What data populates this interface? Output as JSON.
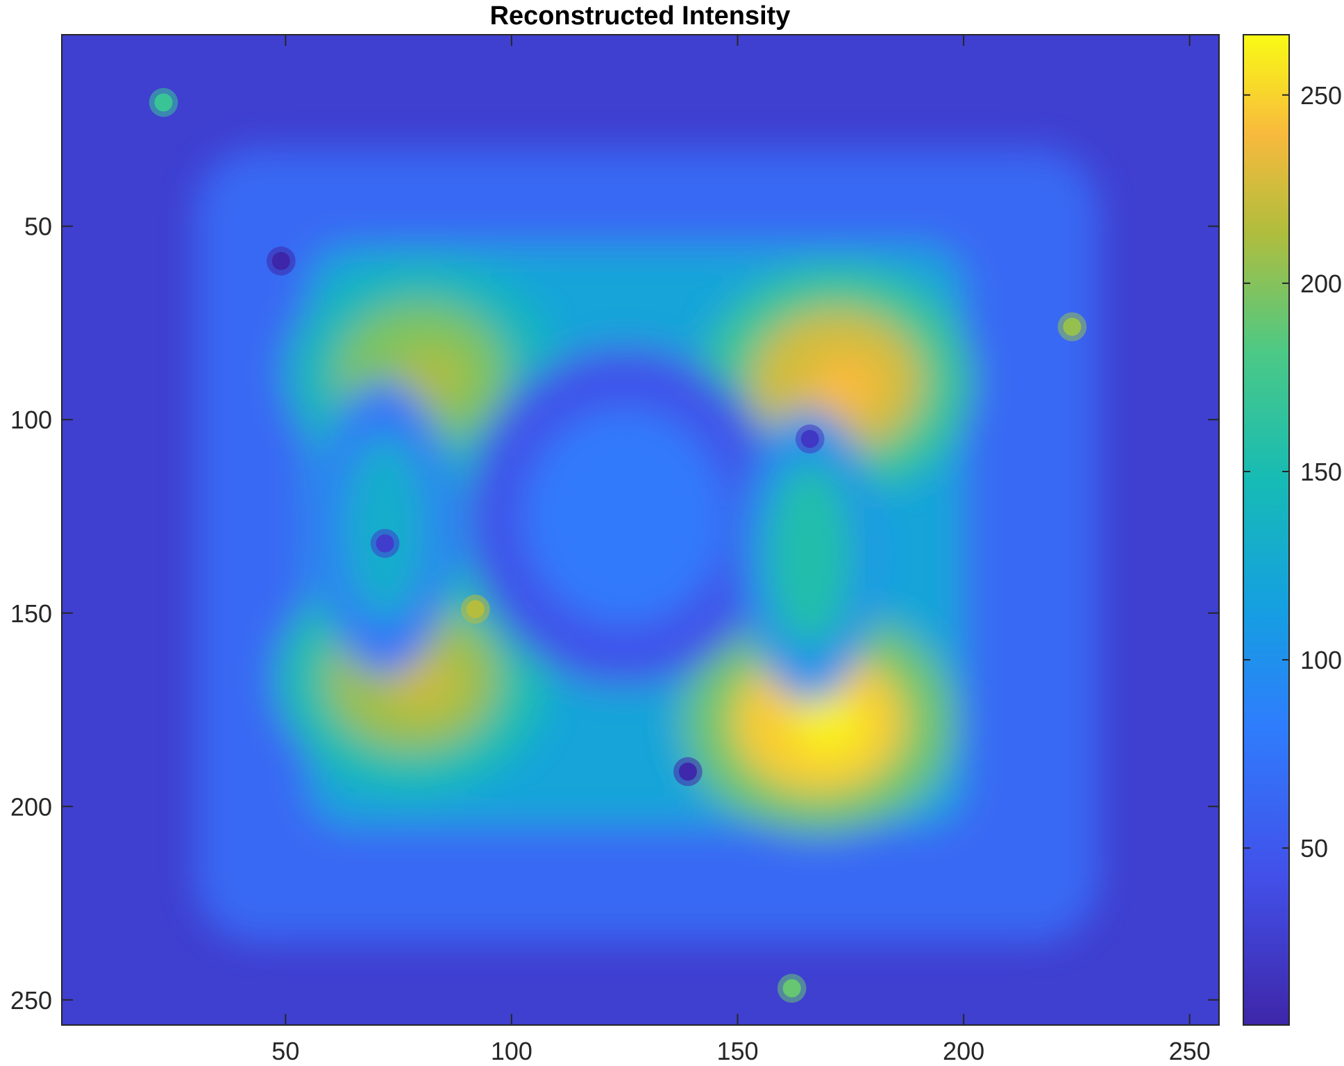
{
  "chart_data": {
    "type": "heatmap",
    "title": "Reconstructed Intensity",
    "xlabel": "",
    "ylabel": "",
    "x_range": [
      0.5,
      256.5
    ],
    "y_range": [
      0.5,
      256.5
    ],
    "y_direction": "reversed",
    "x_ticks": [
      50,
      100,
      150,
      200,
      250
    ],
    "y_ticks": [
      50,
      100,
      150,
      200,
      250
    ],
    "colormap": "parula",
    "color_range": [
      3,
      266
    ],
    "colorbar_ticks": [
      50,
      100,
      150,
      200,
      250
    ],
    "colorbar_location": "right",
    "grid": false,
    "background_level": 45,
    "regions": [
      {
        "label": "upper-left lobe",
        "x": 80,
        "y": 88,
        "peak": 212
      },
      {
        "label": "upper-right lobe",
        "x": 172,
        "y": 90,
        "peak": 240
      },
      {
        "label": "lower-left lobe",
        "x": 78,
        "y": 167,
        "peak": 222
      },
      {
        "label": "lower-right lobe",
        "x": 168,
        "y": 178,
        "peak": 262
      },
      {
        "label": "central region",
        "x": 125,
        "y": 125,
        "peak": 95
      },
      {
        "label": "left bridge",
        "x": 72,
        "y": 128,
        "peak": 145
      },
      {
        "label": "right bridge",
        "x": 166,
        "y": 135,
        "peak": 170
      }
    ],
    "point_features": [
      {
        "x": 23,
        "y": 18,
        "value": 170
      },
      {
        "x": 49,
        "y": 59,
        "value": 3
      },
      {
        "x": 166,
        "y": 105,
        "value": 20
      },
      {
        "x": 72,
        "y": 132,
        "value": 25
      },
      {
        "x": 139,
        "y": 191,
        "value": 5
      },
      {
        "x": 224,
        "y": 76,
        "value": 205
      },
      {
        "x": 162,
        "y": 247,
        "value": 190
      },
      {
        "x": 92,
        "y": 149,
        "value": 215
      }
    ]
  }
}
